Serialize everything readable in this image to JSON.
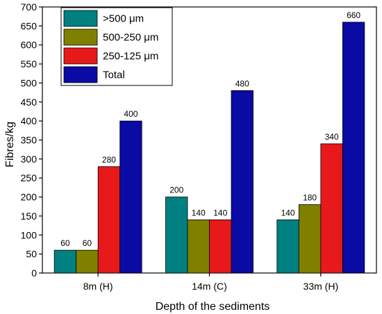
{
  "chart_data": {
    "type": "bar",
    "title": "",
    "xlabel": "Depth of the sediments",
    "ylabel": "Fibres/kg",
    "categories": [
      "8m (H)",
      "14m (C)",
      "33m (H)"
    ],
    "ylim": [
      0,
      700
    ],
    "yticks": [
      0,
      50,
      100,
      150,
      200,
      250,
      300,
      350,
      400,
      450,
      500,
      550,
      600,
      650,
      700
    ],
    "series": [
      {
        "name": ">500 μm",
        "color": "#008080",
        "values": [
          60,
          200,
          140
        ]
      },
      {
        "name": "500-250 μm",
        "color": "#808000",
        "values": [
          60,
          140,
          180
        ]
      },
      {
        "name": "250-125 μm",
        "color": "#e8191b",
        "values": [
          280,
          140,
          340
        ]
      },
      {
        "name": "Total",
        "color": "#0a0aa5",
        "values": [
          400,
          480,
          660
        ]
      }
    ],
    "legend_position": "top-left",
    "grid": false
  }
}
